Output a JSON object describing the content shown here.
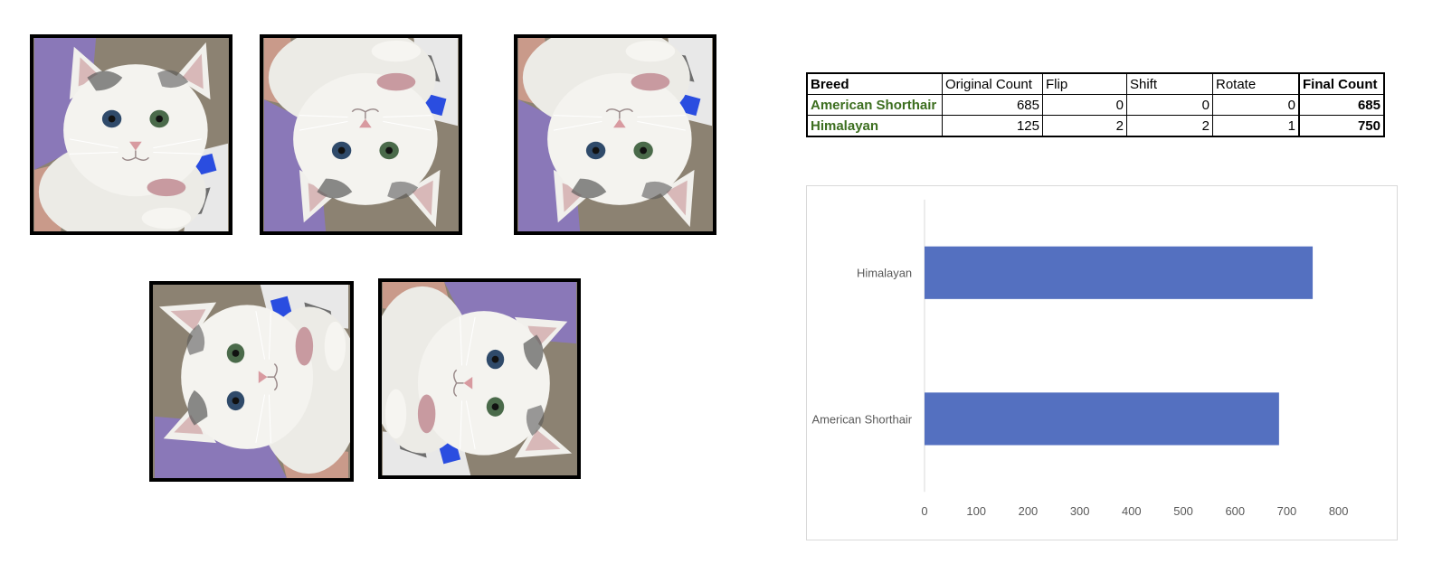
{
  "images": [
    {
      "name": "cat-original",
      "orientation": "original"
    },
    {
      "name": "cat-flipped-vertical",
      "orientation": "flip-vertical"
    },
    {
      "name": "cat-shifted",
      "orientation": "flip-vertical-shift"
    },
    {
      "name": "cat-rotated-left",
      "orientation": "rotate-left"
    },
    {
      "name": "cat-rotated-right",
      "orientation": "rotate-right"
    }
  ],
  "table": {
    "headers": [
      "Breed",
      "Original Count",
      "Flip",
      "Shift",
      "Rotate",
      "Final Count"
    ],
    "rows": [
      [
        "American Shorthair",
        "685",
        "0",
        "0",
        "0",
        "685"
      ],
      [
        "Himalayan",
        "125",
        "2",
        "2",
        "1",
        "750"
      ]
    ]
  },
  "chart_data": {
    "type": "bar",
    "orientation": "horizontal",
    "categories": [
      "American Shorthair",
      "Himalayan"
    ],
    "values": [
      685,
      750
    ],
    "xlim": [
      0,
      800
    ],
    "xticks": [
      0,
      100,
      200,
      300,
      400,
      500,
      600,
      700,
      800
    ],
    "title": "",
    "xlabel": "",
    "ylabel": "",
    "grid": false,
    "bar_color": "#5470c0"
  }
}
